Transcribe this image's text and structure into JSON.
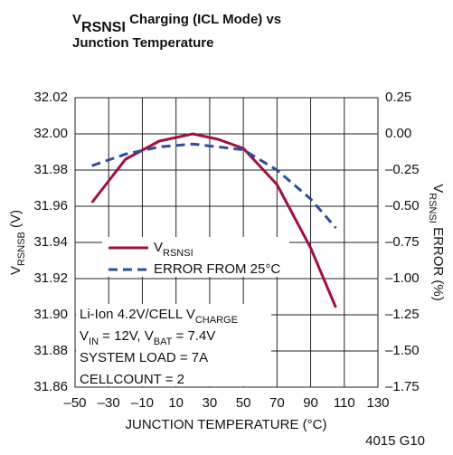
{
  "chart_data": {
    "type": "line",
    "title": [
      [
        {
          "t": "V"
        },
        {
          "t": "RSNSI",
          "sub": true
        },
        {
          "t": " Charging (ICL Mode) vs"
        }
      ],
      [
        {
          "t": "Junction Temperature"
        }
      ]
    ],
    "xlabel": "JUNCTION TEMPERATURE (°C)",
    "ylabel": [
      {
        "t": "V"
      },
      {
        "t": "RSNSB",
        "sub": true
      },
      {
        "t": " (V)"
      }
    ],
    "y2label": [
      {
        "t": "V"
      },
      {
        "t": "RSNSI",
        "sub": true
      },
      {
        "t": " ERROR  (%)"
      }
    ],
    "footnote": "4015 G10",
    "annotation": [
      [
        {
          "t": "Li-Ion 4.2V/CELL V"
        },
        {
          "t": "CHARGE",
          "sub": true
        }
      ],
      [
        {
          "t": "V"
        },
        {
          "t": "IN",
          "sub": true
        },
        {
          "t": " = 12V, V"
        },
        {
          "t": "BAT",
          "sub": true
        },
        {
          "t": " = 7.4V"
        }
      ],
      [
        {
          "t": "SYSTEM LOAD = 7A"
        }
      ],
      [
        {
          "t": "CELLCOUNT = 2"
        }
      ]
    ],
    "x": [
      -40,
      -20,
      0,
      20,
      35,
      50,
      70,
      90,
      105
    ],
    "series": [
      {
        "name": [
          {
            "t": "V"
          },
          {
            "t": "RSNSI",
            "sub": true
          }
        ],
        "color": "#a0123a",
        "dash": false,
        "values": [
          31.962,
          31.986,
          31.996,
          32.0,
          31.997,
          31.992,
          31.972,
          31.937,
          31.904
        ]
      },
      {
        "name": [
          {
            "t": "ERROR FROM 25°C"
          }
        ],
        "color": "#2e4e9a",
        "dash": true,
        "axis": "y2",
        "values": [
          -0.22,
          -0.14,
          -0.09,
          -0.07,
          -0.09,
          -0.11,
          -0.25,
          -0.45,
          -0.65
        ]
      }
    ],
    "xlim": [
      -50,
      130
    ],
    "xticks": [
      {
        "value": -50,
        "label": "–50"
      },
      {
        "value": -30,
        "label": "–30"
      },
      {
        "value": -10,
        "label": "–10"
      },
      10,
      30,
      50,
      70,
      90,
      110,
      130
    ],
    "ylim": [
      31.86,
      32.02
    ],
    "yticks": [
      31.86,
      31.88,
      {
        "value": 31.9,
        "label": "31.90"
      },
      31.92,
      31.94,
      31.96,
      31.98,
      {
        "value": 32.0,
        "label": "32.00"
      },
      32.02
    ],
    "y2lim": [
      -1.75,
      0.25
    ],
    "y2ticks": [
      {
        "value": -1.75,
        "label": "–1.75"
      },
      {
        "value": -1.5,
        "label": "–1.50"
      },
      {
        "value": -1.25,
        "label": "–1.25"
      },
      {
        "value": -1.0,
        "label": "–1.00"
      },
      {
        "value": -0.75,
        "label": "–0.75"
      },
      {
        "value": -0.5,
        "label": "–0.50"
      },
      {
        "value": -0.25,
        "label": "–0.25"
      },
      {
        "value": 0,
        "label": "0.00"
      },
      0.25
    ],
    "grid": true
  }
}
